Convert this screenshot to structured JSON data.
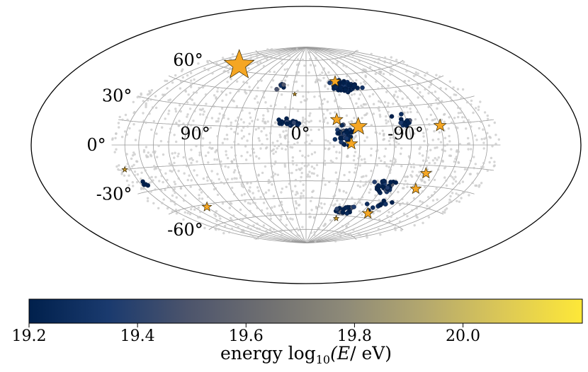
{
  "chart_data": {
    "type": "scatter",
    "projection": "hammer-aitoff",
    "frame": "galactic",
    "title": "",
    "lat_ticks": [
      {
        "value": 60,
        "label": "60°"
      },
      {
        "value": 30,
        "label": "30°"
      },
      {
        "value": 0,
        "label": "0°"
      },
      {
        "value": -30,
        "label": "-30°"
      },
      {
        "value": -60,
        "label": "-60°"
      }
    ],
    "lon_ticks": [
      {
        "value": 90,
        "label": "90°"
      },
      {
        "value": 0,
        "label": "0°"
      },
      {
        "value": -90,
        "label": "-90°"
      }
    ],
    "colorbar": {
      "label_prefix": "energy log",
      "label_sub": "10",
      "label_var": "(E",
      "label_suffix": "/ eV)",
      "range": [
        19.2,
        20.22
      ],
      "ticks": [
        {
          "value": 19.2,
          "label": "19.2"
        },
        {
          "value": 19.4,
          "label": "19.4"
        },
        {
          "value": 19.6,
          "label": "19.6"
        },
        {
          "value": 19.8,
          "label": "19.8"
        },
        {
          "value": 20.0,
          "label": "20.0"
        }
      ],
      "colormap": "cividis",
      "stops": [
        "#00204c",
        "#1a3a6e",
        "#4c546c",
        "#6f6f71",
        "#8e8a78",
        "#b4a86e",
        "#dcc856",
        "#fee838"
      ]
    },
    "background_events": {
      "count": 1500,
      "color": "#c8c8c8",
      "description_free": true
    },
    "clusters": [
      {
        "lon": -45,
        "lat": 49,
        "spread_lon": 10,
        "spread_lat": 3.5,
        "count": 130,
        "emin": 19.2,
        "emax": 19.35
      },
      {
        "lon": 15,
        "lat": 18,
        "spread_lon": 8,
        "spread_lat": 2.5,
        "count": 24,
        "emin": 19.2,
        "emax": 19.45
      },
      {
        "lon": -33,
        "lat": 7,
        "spread_lon": 5,
        "spread_lat": 6,
        "count": 40,
        "emin": 19.2,
        "emax": 19.6
      },
      {
        "lon": -88,
        "lat": 18,
        "spread_lon": 6,
        "spread_lat": 4,
        "count": 16,
        "emin": 19.2,
        "emax": 19.5
      },
      {
        "lon": -77,
        "lat": -33,
        "spread_lon": 8,
        "spread_lat": 6,
        "count": 28,
        "emin": 19.2,
        "emax": 19.55
      },
      {
        "lon": -50,
        "lat": -55,
        "spread_lon": 8,
        "spread_lat": 4,
        "count": 22,
        "emin": 19.2,
        "emax": 19.6
      },
      {
        "lon": -85,
        "lat": -47,
        "spread_lon": 10,
        "spread_lat": 4,
        "count": 12,
        "emin": 19.2,
        "emax": 19.55
      },
      {
        "lon": 160,
        "lat": -25,
        "spread_lon": 4,
        "spread_lat": 2,
        "count": 5,
        "emin": 19.2,
        "emax": 19.5
      },
      {
        "lon": 30,
        "lat": 51,
        "spread_lon": 3,
        "spread_lat": 3,
        "count": 6,
        "emin": 19.2,
        "emax": 19.6
      }
    ],
    "stars": [
      {
        "lon": 120,
        "lat": 64,
        "energy": 20.08,
        "size": 22
      },
      {
        "lon": -45,
        "lat": 15,
        "energy": 20.12,
        "size": 13
      },
      {
        "lon": -27,
        "lat": 21,
        "energy": 20.05,
        "size": 9
      },
      {
        "lon": -38,
        "lat": 1,
        "energy": 20.0,
        "size": 9
      },
      {
        "lon": -37,
        "lat": 54,
        "energy": 20.0,
        "size": 8
      },
      {
        "lon": -120,
        "lat": 14,
        "energy": 20.05,
        "size": 9
      },
      {
        "lon": -110,
        "lat": -21,
        "energy": 20.0,
        "size": 8
      },
      {
        "lon": -110,
        "lat": -33,
        "energy": 20.05,
        "size": 8
      },
      {
        "lon": -85,
        "lat": -56,
        "energy": 20.0,
        "size": 8
      },
      {
        "lon": 120,
        "lat": -47,
        "energy": 20.05,
        "size": 7
      },
      {
        "lon": 172,
        "lat": -15,
        "energy": 19.9,
        "size": 4
      },
      {
        "lon": 12,
        "lat": 43,
        "energy": 19.9,
        "size": 3
      },
      {
        "lon": -48,
        "lat": -63,
        "energy": 19.9,
        "size": 4
      }
    ]
  }
}
